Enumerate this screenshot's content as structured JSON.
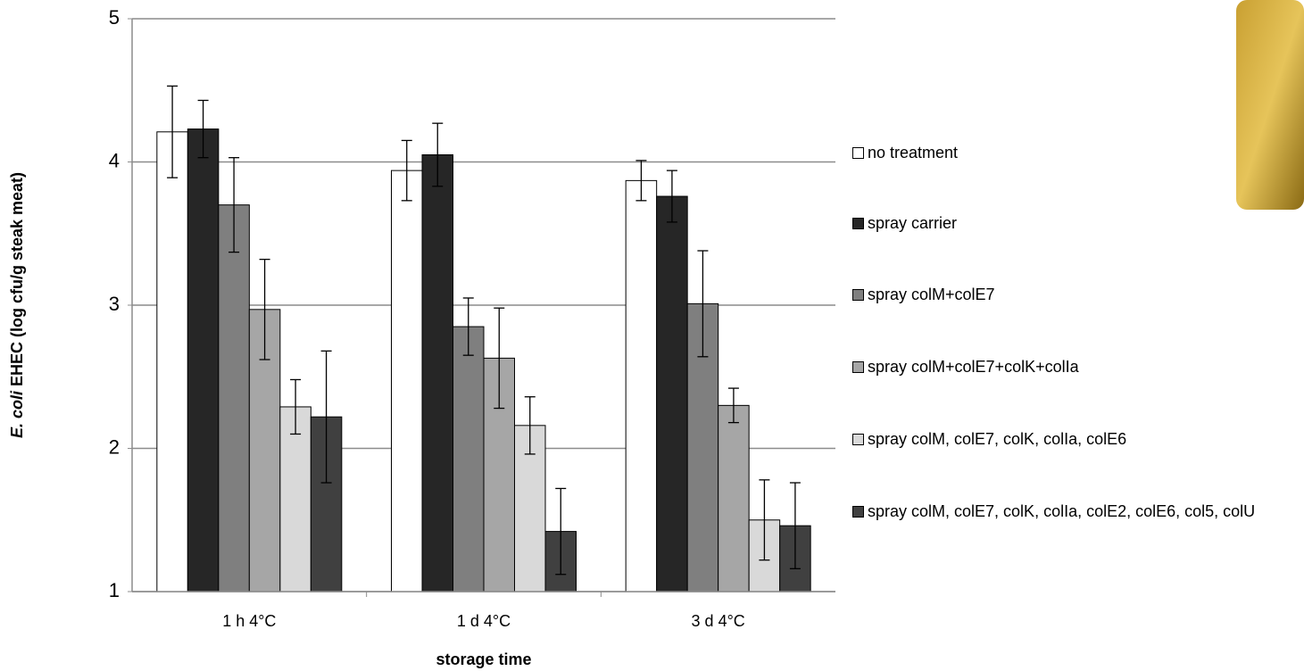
{
  "chart_data": {
    "type": "bar",
    "ylabel": [
      "E. coli",
      "EHEC (log cfu/g steak meat)"
    ],
    "xlabel": "storage time",
    "categories": [
      "1 h 4°C",
      "1 d 4°C",
      "3 d 4°C"
    ],
    "ylim": [
      1,
      5
    ],
    "yticks": [
      1,
      2,
      3,
      4,
      5
    ],
    "grid": true,
    "series": [
      {
        "name": "no treatment",
        "color": "#ffffff",
        "values": [
          4.21,
          3.94,
          3.87
        ],
        "errors": [
          0.32,
          0.21,
          0.14
        ]
      },
      {
        "name": "spray carrier",
        "color": "#262626",
        "values": [
          4.23,
          4.05,
          3.76
        ],
        "errors": [
          0.2,
          0.22,
          0.18
        ]
      },
      {
        "name": "spray colM+colE7",
        "color": "#7f7f7f",
        "values": [
          3.7,
          2.85,
          3.01
        ],
        "errors": [
          0.33,
          0.2,
          0.37
        ]
      },
      {
        "name": "spray colM+colE7+colK+colIa",
        "color": "#a6a6a6",
        "values": [
          2.97,
          2.63,
          2.3
        ],
        "errors": [
          0.35,
          0.35,
          0.12
        ]
      },
      {
        "name": "spray colM, colE7, colK, colIa, colE6",
        "color": "#d9d9d9",
        "values": [
          2.29,
          2.16,
          1.5
        ],
        "errors": [
          0.19,
          0.2,
          0.28
        ]
      },
      {
        "name": "spray colM, colE7, colK, colIa, colE2, colE6, col5, colU",
        "color": "#404040",
        "values": [
          2.22,
          1.42,
          1.46
        ],
        "errors": [
          0.46,
          0.3,
          0.3
        ]
      }
    ]
  }
}
